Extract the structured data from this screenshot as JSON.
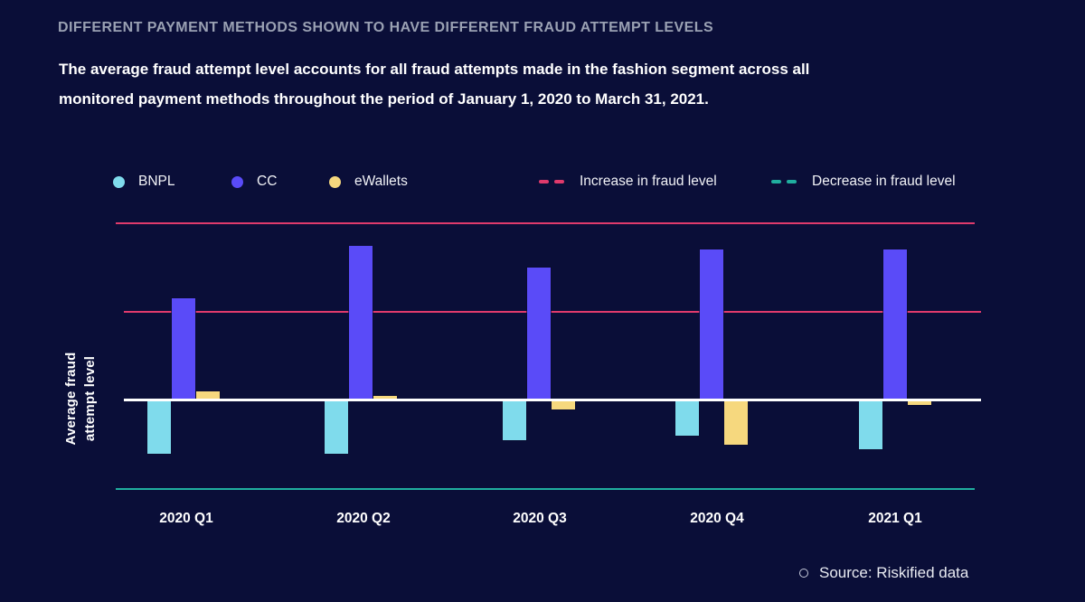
{
  "header": {
    "title": "DIFFERENT PAYMENT METHODS SHOWN TO HAVE DIFFERENT FRAUD ATTEMPT LEVELS",
    "subtitle_lines": [
      "The average fraud attempt level accounts for all fraud attempts made in the fashion segment across all",
      "monitored payment methods throughout the period of January 1, 2020 to March 31, 2021."
    ]
  },
  "chart_data": {
    "type": "bar",
    "title": "Different payment methods shown to have different fraud attempt levels",
    "categories": [
      "2020 Q1",
      "2020 Q2",
      "2020 Q3",
      "2020 Q4",
      "2021 Q1"
    ],
    "series": [
      {
        "name": "BNPL",
        "color": "#7fdbec",
        "values": [
          -6,
          -6,
          -4.5,
          -4,
          -5.5
        ]
      },
      {
        "name": "CC",
        "color": "#5a4bf8",
        "values": [
          11.5,
          17.5,
          15,
          17,
          17
        ]
      },
      {
        "name": "eWallets",
        "color": "#f6d87e",
        "values": [
          1,
          0.5,
          -1,
          -5,
          -0.5
        ]
      }
    ],
    "reference_lines": [
      {
        "label": "Increase in fraud level",
        "color": "#e03a6c",
        "values": [
          20,
          10
        ]
      },
      {
        "label": "Decrease in fraud level",
        "color": "#20ae9f",
        "values": [
          -10
        ]
      }
    ],
    "baseline": 0,
    "baseline_color": "#ffffff",
    "ylabel": "Average fraud attempt level",
    "xlabel": "",
    "ylim": [
      -11,
      22
    ],
    "value_axis_ticks": "none (qualitative relative scale)",
    "grid": "off",
    "legend_position": "top"
  },
  "source": {
    "text": "Source: Riskified data"
  },
  "colors": {
    "background": "#0a0e38",
    "title": "#9aa1b3",
    "body_text": "#ffffff",
    "legend_text": "#f2f3f7",
    "zero_line": "#ffffff",
    "source_text": "#e9ebf2"
  }
}
